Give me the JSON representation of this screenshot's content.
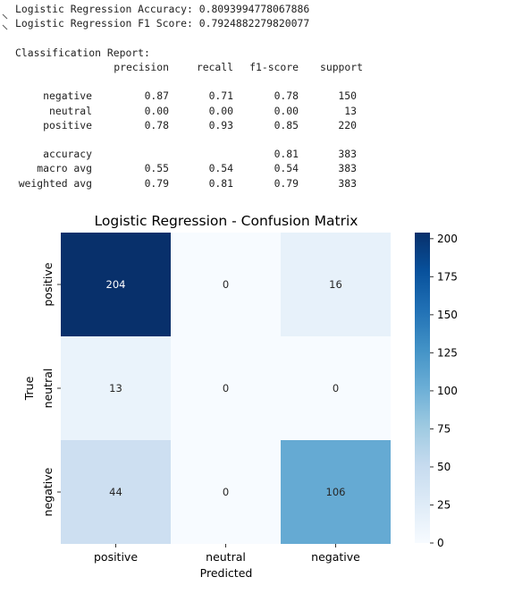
{
  "output": {
    "accuracy_line": "Logistic Regression Accuracy: 0.8093994778067886",
    "f1_line": "Logistic Regression F1 Score: 0.7924882279820077",
    "report_title": "Classification Report:",
    "report_headers": [
      "precision",
      "recall",
      "f1-score",
      "support"
    ],
    "report_rows": [
      {
        "label": "negative",
        "precision": "0.87",
        "recall": "0.71",
        "f1": "0.78",
        "support": "150"
      },
      {
        "label": "neutral",
        "precision": "0.00",
        "recall": "0.00",
        "f1": "0.00",
        "support": "13"
      },
      {
        "label": "positive",
        "precision": "0.78",
        "recall": "0.93",
        "f1": "0.85",
        "support": "220"
      }
    ],
    "report_summary": [
      {
        "label": "accuracy",
        "precision": "",
        "recall": "",
        "f1": "0.81",
        "support": "383"
      },
      {
        "label": "macro avg",
        "precision": "0.55",
        "recall": "0.54",
        "f1": "0.54",
        "support": "383"
      },
      {
        "label": "weighted avg",
        "precision": "0.79",
        "recall": "0.81",
        "f1": "0.79",
        "support": "383"
      }
    ]
  },
  "chart_data": {
    "type": "heatmap",
    "title": "Logistic Regression - Confusion Matrix",
    "xlabel": "Predicted",
    "ylabel": "True",
    "x_categories": [
      "positive",
      "neutral",
      "negative"
    ],
    "y_categories": [
      "positive",
      "neutral",
      "negative"
    ],
    "values": [
      [
        204,
        0,
        16
      ],
      [
        13,
        0,
        0
      ],
      [
        44,
        0,
        106
      ]
    ],
    "colorbar_ticks": [
      0,
      25,
      50,
      75,
      100,
      125,
      150,
      175,
      200
    ],
    "vmin": 0,
    "vmax": 204,
    "colormap": "Blues",
    "colors": {
      "low": "#f7fbff",
      "high": "#08306b"
    }
  }
}
